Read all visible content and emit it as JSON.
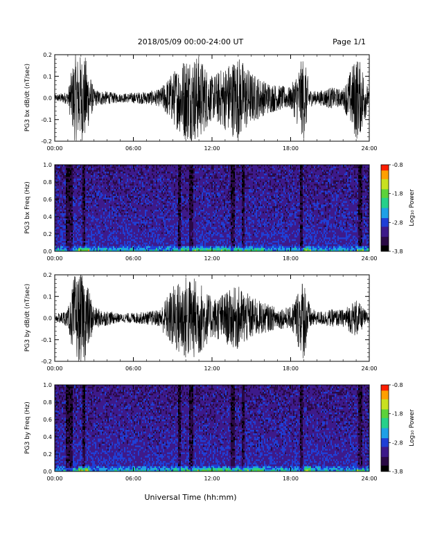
{
  "header": {
    "date_range": "2018/05/09  00:00-24:00 UT",
    "page": "Page 1/1"
  },
  "footer": {
    "xlabel": "Universal Time (hh:mm)"
  },
  "colors": {
    "trace": "#000000",
    "spectrogram_scale": [
      "#000000",
      "#2a0a45",
      "#3d1a8a",
      "#1f3fd6",
      "#1fa0e6",
      "#27d08a",
      "#5cd23a",
      "#c8e020",
      "#ffa000",
      "#ff1e00"
    ]
  },
  "chart_data": [
    {
      "type": "line",
      "ylabel": "PG3 bx dB/dt (nT/sec)",
      "ylim": [
        -0.2,
        0.2
      ],
      "yticks": [
        "0.2",
        "0.1",
        "0.0",
        "-0.1",
        "-0.2"
      ],
      "xticks": [
        "00:00",
        "06:00",
        "12:00",
        "18:00",
        "24:00"
      ],
      "x_range_hours": [
        0,
        24
      ],
      "envelope_hours": [
        0,
        1,
        1.5,
        2,
        2.3,
        3,
        5,
        7,
        8,
        9,
        10,
        11,
        12,
        13,
        14,
        15,
        16,
        17,
        18,
        19,
        19.5,
        20,
        21,
        22,
        23,
        23.5,
        24
      ],
      "envelope_amplitude": [
        0.015,
        0.03,
        0.2,
        0.2,
        0.2,
        0.04,
        0.02,
        0.03,
        0.04,
        0.12,
        0.2,
        0.2,
        0.1,
        0.15,
        0.2,
        0.12,
        0.08,
        0.06,
        0.05,
        0.2,
        0.04,
        0.03,
        0.05,
        0.04,
        0.2,
        0.15,
        0.02
      ]
    },
    {
      "type": "heatmap",
      "ylabel": "PG3 bx Freq (Hz)",
      "ylim": [
        0.0,
        1.0
      ],
      "yticks": [
        "1.0",
        "0.8",
        "0.6",
        "0.4",
        "0.2",
        "0.0"
      ],
      "xticks": [
        "00:00",
        "06:00",
        "12:00",
        "18:00",
        "24:00"
      ],
      "colorbar_label": "Log₁₀ Power",
      "colorbar_ticks": [
        "-0.8",
        "-1.8",
        "-2.8",
        "-3.8"
      ],
      "colorbar_range": [
        -3.8,
        -0.8
      ],
      "dark_band_hours": [
        1.0,
        1.3,
        2.2,
        9.5,
        10.4,
        13.6,
        14.4,
        18.8,
        23.3
      ]
    },
    {
      "type": "line",
      "ylabel": "PG3 by dB/dt (nT/sec)",
      "ylim": [
        -0.2,
        0.2
      ],
      "yticks": [
        "0.2",
        "0.1",
        "0.0",
        "-0.1",
        "-0.2"
      ],
      "xticks": [
        "00:00",
        "06:00",
        "12:00",
        "18:00",
        "24:00"
      ],
      "x_range_hours": [
        0,
        24
      ],
      "envelope_hours": [
        0,
        1,
        1.5,
        2,
        2.3,
        3,
        5,
        7,
        8,
        9,
        10,
        11,
        12,
        13,
        14,
        15,
        16,
        17,
        18,
        19,
        19.5,
        20,
        21,
        22,
        23,
        23.5,
        24
      ],
      "envelope_amplitude": [
        0.015,
        0.04,
        0.2,
        0.2,
        0.2,
        0.05,
        0.02,
        0.03,
        0.04,
        0.15,
        0.2,
        0.18,
        0.09,
        0.12,
        0.15,
        0.1,
        0.07,
        0.05,
        0.05,
        0.2,
        0.05,
        0.03,
        0.04,
        0.04,
        0.09,
        0.05,
        0.02
      ]
    },
    {
      "type": "heatmap",
      "ylabel": "PG3 by Freq (Hz)",
      "ylim": [
        0.0,
        1.0
      ],
      "yticks": [
        "1.0",
        "0.8",
        "0.6",
        "0.4",
        "0.2",
        "0.0"
      ],
      "xticks": [
        "00:00",
        "06:00",
        "12:00",
        "18:00",
        "24:00"
      ],
      "colorbar_label": "Log₁₀ Power",
      "colorbar_ticks": [
        "-0.8",
        "-1.8",
        "-2.8",
        "-3.8"
      ],
      "colorbar_range": [
        -3.8,
        -0.8
      ],
      "dark_band_hours": [
        1.0,
        1.3,
        2.2,
        9.5,
        10.4,
        13.6,
        14.4,
        18.8,
        23.3
      ]
    }
  ]
}
